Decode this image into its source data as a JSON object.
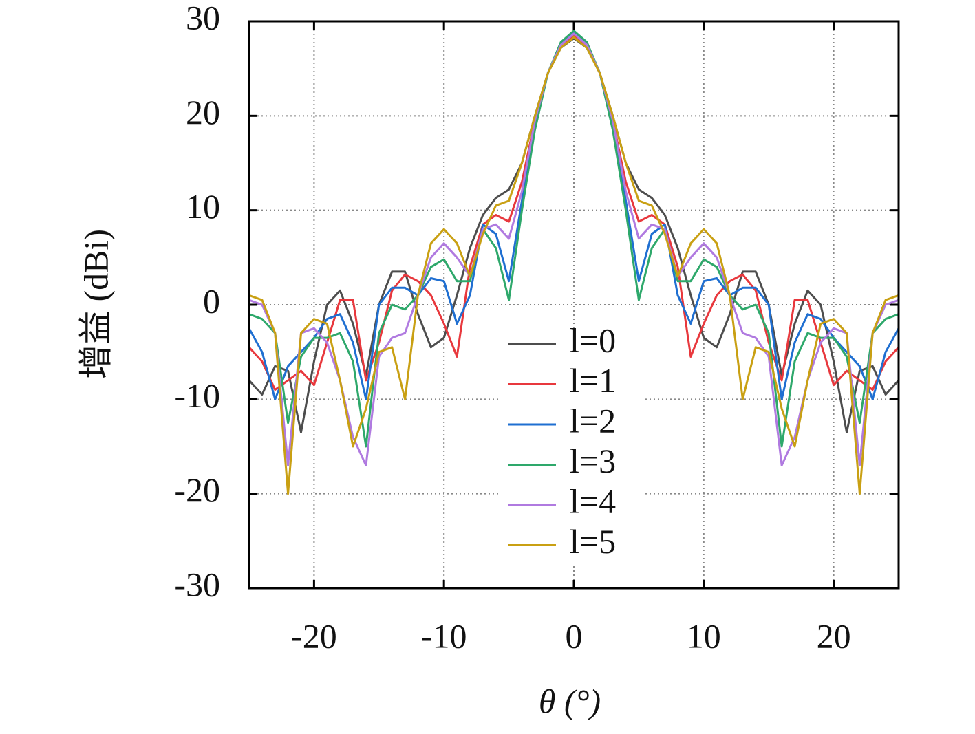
{
  "chart_data": {
    "type": "line",
    "xlabel": "θ (°)",
    "ylabel": "增益 (dBi)",
    "x": [
      -25,
      -24,
      -23,
      -22,
      -21,
      -20,
      -19,
      -18,
      -17,
      -16,
      -15,
      -14,
      -13,
      -12,
      -11,
      -10,
      -9,
      -8,
      -7,
      -6,
      -5,
      -4,
      -3,
      -2,
      -1,
      0,
      1,
      2,
      3,
      4,
      5,
      6,
      7,
      8,
      9,
      10,
      11,
      12,
      13,
      14,
      15,
      16,
      17,
      18,
      19,
      20,
      21,
      22,
      23,
      24,
      25
    ],
    "xlim": [
      -25,
      25
    ],
    "xticks": [
      -20,
      -10,
      0,
      10,
      20
    ],
    "ylim": [
      -30,
      30
    ],
    "yticks": [
      -30,
      -20,
      -10,
      0,
      10,
      20,
      30
    ],
    "grid": true,
    "legend": "bottom",
    "series": [
      {
        "name": "l=0",
        "color": "#4d4d4d",
        "values": [
          -8,
          -9.5,
          -6.5,
          -7,
          -13.5,
          -6,
          0,
          1.5,
          -2,
          -7.5,
          0,
          3.5,
          3.5,
          -1,
          -4.5,
          -3.5,
          1,
          6,
          9.5,
          11.3,
          12.2,
          15,
          20,
          24.5,
          27.2,
          28.2,
          27.2,
          24.5,
          20,
          15,
          12.2,
          11.3,
          9.5,
          6,
          1,
          -3.5,
          -4.5,
          -1,
          3.5,
          3.5,
          0,
          -7.5,
          -2,
          1.5,
          0,
          -6,
          -13.5,
          -7,
          -6.5,
          -9.5,
          -8
        ]
      },
      {
        "name": "l=1",
        "color": "#e8383d",
        "values": [
          -4.5,
          -6,
          -9,
          -8,
          -7,
          -8.5,
          -4,
          0.5,
          0.5,
          -8,
          -4,
          1.5,
          3.2,
          2.5,
          1,
          -2,
          -5.5,
          4,
          8.5,
          9.5,
          8.8,
          13,
          19.5,
          24.5,
          27.5,
          28.5,
          27.5,
          24.5,
          19.5,
          13,
          8.8,
          9.5,
          8.5,
          4,
          -5.5,
          -2,
          1,
          2.5,
          3.2,
          1.5,
          -4,
          -8,
          0.5,
          0.5,
          -4,
          -8.5,
          -7,
          -8,
          -9,
          -6,
          -4.5
        ]
      },
      {
        "name": "l=2",
        "color": "#1f6fd1",
        "values": [
          -2.5,
          -5,
          -10,
          -6.5,
          -5,
          -3.5,
          -1.5,
          -1,
          -4,
          -10,
          0,
          1.8,
          1.8,
          1,
          2.8,
          2.5,
          -2,
          1,
          8.5,
          7.5,
          2.5,
          11,
          19,
          24.5,
          27.7,
          28.8,
          27.7,
          24.5,
          19,
          11,
          2.5,
          7.5,
          8.5,
          1,
          -2,
          2.5,
          2.8,
          1,
          1.8,
          1.8,
          0,
          -10,
          -4,
          -1,
          -1.5,
          -3.5,
          -5,
          -6.5,
          -10,
          -5,
          -2.5
        ]
      },
      {
        "name": "l=3",
        "color": "#2ea86b",
        "values": [
          -1,
          -1.5,
          -3,
          -12.5,
          -5.5,
          -3.5,
          -3.5,
          -3,
          -6,
          -15,
          -3,
          0,
          -0.5,
          1,
          4,
          4.8,
          2.5,
          2.5,
          8,
          6,
          0.5,
          10,
          18.5,
          24.5,
          27.8,
          29,
          27.8,
          24.5,
          18.5,
          10,
          0.5,
          6,
          8,
          2.5,
          2.5,
          4.8,
          4,
          1,
          -0.5,
          0,
          -3,
          -15,
          -6,
          -3,
          -3.5,
          -3.5,
          -5.5,
          -12.5,
          -3,
          -1.5,
          -1
        ]
      },
      {
        "name": "l=4",
        "color": "#b07ae0",
        "values": [
          0.5,
          0,
          -3,
          -17,
          -3,
          -2.5,
          -4,
          -8,
          -14,
          -17,
          -5.5,
          -3.5,
          -3,
          1,
          5,
          6.5,
          5,
          3,
          8,
          8.5,
          7,
          12,
          19.5,
          24.5,
          27.5,
          28.7,
          27.5,
          24.5,
          19.5,
          12,
          7,
          8.5,
          8,
          3,
          5,
          6.5,
          5,
          1,
          -3,
          -3.5,
          -5.5,
          -17,
          -14,
          -8,
          -4,
          -2.5,
          -3,
          -17,
          -3,
          0,
          0.5
        ]
      },
      {
        "name": "l=5",
        "color": "#c9a013",
        "values": [
          1,
          0.5,
          -3,
          -20,
          -3,
          -1.5,
          -2,
          -8,
          -15,
          -11,
          -5,
          -4.5,
          -10,
          1,
          6.5,
          8,
          6.5,
          3,
          7.5,
          10.5,
          11,
          15,
          20,
          24.5,
          27.2,
          28.3,
          27.2,
          24.5,
          20,
          15,
          11,
          10.5,
          7.5,
          3,
          6.5,
          8,
          6.5,
          1,
          -10,
          -4.5,
          -5,
          -11,
          -15,
          -8,
          -2,
          -1.5,
          -3,
          -20,
          -3,
          0.5,
          1
        ]
      }
    ]
  }
}
